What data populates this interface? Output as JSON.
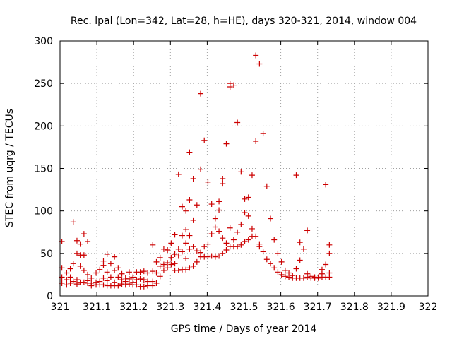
{
  "chart_data": {
    "type": "scatter",
    "title": "Rec. lpal (Lon=342, Lat=28, h=HE), days 320-321, 2014, window 004",
    "xlabel": "GPS time / Days of year 2014",
    "ylabel": "STEC from uqrg / TECUs",
    "xlim": [
      321,
      322
    ],
    "ylim": [
      0,
      300
    ],
    "x_ticks": [
      "321",
      "321.1",
      "321.2",
      "321.3",
      "321.4",
      "321.5",
      "321.6",
      "321.7",
      "321.8",
      "321.9",
      "322"
    ],
    "y_ticks": [
      "0",
      "50",
      "100",
      "150",
      "200",
      "250",
      "300"
    ],
    "grid": true,
    "marker": "plus",
    "color": "#cc0000",
    "points": [
      [
        321.005,
        64
      ],
      [
        321.005,
        33
      ],
      [
        321.005,
        22
      ],
      [
        321.005,
        15
      ],
      [
        321.018,
        27
      ],
      [
        321.018,
        19
      ],
      [
        321.018,
        13
      ],
      [
        321.028,
        32
      ],
      [
        321.028,
        22
      ],
      [
        321.028,
        15
      ],
      [
        321.036,
        87
      ],
      [
        321.036,
        38
      ],
      [
        321.036,
        17
      ],
      [
        321.046,
        65
      ],
      [
        321.046,
        50
      ],
      [
        321.046,
        19
      ],
      [
        321.046,
        14
      ],
      [
        321.055,
        61
      ],
      [
        321.055,
        48
      ],
      [
        321.055,
        35
      ],
      [
        321.055,
        16
      ],
      [
        321.065,
        73
      ],
      [
        321.065,
        48
      ],
      [
        321.065,
        30
      ],
      [
        321.065,
        16
      ],
      [
        321.075,
        64
      ],
      [
        321.075,
        25
      ],
      [
        321.075,
        18
      ],
      [
        321.075,
        15
      ],
      [
        321.085,
        21
      ],
      [
        321.085,
        15
      ],
      [
        321.085,
        12
      ],
      [
        321.098,
        27
      ],
      [
        321.098,
        16
      ],
      [
        321.098,
        13
      ],
      [
        321.108,
        31
      ],
      [
        321.108,
        17
      ],
      [
        321.108,
        13
      ],
      [
        321.118,
        41
      ],
      [
        321.118,
        36
      ],
      [
        321.118,
        21
      ],
      [
        321.118,
        13
      ],
      [
        321.128,
        49
      ],
      [
        321.128,
        28
      ],
      [
        321.128,
        18
      ],
      [
        321.128,
        12
      ],
      [
        321.138,
        38
      ],
      [
        321.138,
        22
      ],
      [
        321.138,
        12
      ],
      [
        321.148,
        46
      ],
      [
        321.148,
        30
      ],
      [
        321.148,
        16
      ],
      [
        321.148,
        12
      ],
      [
        321.158,
        33
      ],
      [
        321.158,
        22
      ],
      [
        321.158,
        12
      ],
      [
        321.168,
        26
      ],
      [
        321.168,
        19
      ],
      [
        321.168,
        14
      ],
      [
        321.178,
        21
      ],
      [
        321.178,
        17
      ],
      [
        321.178,
        13
      ],
      [
        321.188,
        28
      ],
      [
        321.188,
        20
      ],
      [
        321.188,
        14
      ],
      [
        321.198,
        22
      ],
      [
        321.198,
        16
      ],
      [
        321.198,
        13
      ],
      [
        321.208,
        28
      ],
      [
        321.208,
        19
      ],
      [
        321.208,
        13
      ],
      [
        321.218,
        28
      ],
      [
        321.218,
        20
      ],
      [
        321.218,
        11
      ],
      [
        321.228,
        29
      ],
      [
        321.228,
        19
      ],
      [
        321.228,
        11
      ],
      [
        321.238,
        27
      ],
      [
        321.238,
        17
      ],
      [
        321.238,
        12
      ],
      [
        321.252,
        60
      ],
      [
        321.252,
        29
      ],
      [
        321.252,
        17
      ],
      [
        321.252,
        12
      ],
      [
        321.262,
        40
      ],
      [
        321.262,
        27
      ],
      [
        321.262,
        15
      ],
      [
        321.272,
        45
      ],
      [
        321.272,
        35
      ],
      [
        321.272,
        23
      ],
      [
        321.282,
        55
      ],
      [
        321.282,
        37
      ],
      [
        321.282,
        30
      ],
      [
        321.292,
        54
      ],
      [
        321.292,
        39
      ],
      [
        321.292,
        33
      ],
      [
        321.302,
        62
      ],
      [
        321.302,
        45
      ],
      [
        321.302,
        37
      ],
      [
        321.312,
        72
      ],
      [
        321.312,
        49
      ],
      [
        321.312,
        38
      ],
      [
        321.312,
        30
      ],
      [
        321.322,
        143
      ],
      [
        321.322,
        55
      ],
      [
        321.322,
        47
      ],
      [
        321.322,
        30
      ],
      [
        321.332,
        105
      ],
      [
        321.332,
        71
      ],
      [
        321.332,
        52
      ],
      [
        321.332,
        31
      ],
      [
        321.342,
        100
      ],
      [
        321.342,
        78
      ],
      [
        321.342,
        62
      ],
      [
        321.342,
        44
      ],
      [
        321.342,
        31
      ],
      [
        321.352,
        169
      ],
      [
        321.352,
        113
      ],
      [
        321.352,
        71
      ],
      [
        321.352,
        55
      ],
      [
        321.352,
        33
      ],
      [
        321.362,
        138
      ],
      [
        321.362,
        89
      ],
      [
        321.362,
        58
      ],
      [
        321.362,
        35
      ],
      [
        321.372,
        107
      ],
      [
        321.372,
        53
      ],
      [
        321.372,
        40
      ],
      [
        321.382,
        238
      ],
      [
        321.382,
        149
      ],
      [
        321.382,
        51
      ],
      [
        321.382,
        46
      ],
      [
        321.392,
        183
      ],
      [
        321.392,
        58
      ],
      [
        321.392,
        46
      ],
      [
        321.402,
        134
      ],
      [
        321.402,
        61
      ],
      [
        321.402,
        46
      ],
      [
        321.412,
        108
      ],
      [
        321.412,
        73
      ],
      [
        321.412,
        47
      ],
      [
        321.422,
        91
      ],
      [
        321.422,
        81
      ],
      [
        321.422,
        46
      ],
      [
        321.432,
        111
      ],
      [
        321.432,
        101
      ],
      [
        321.432,
        76
      ],
      [
        321.432,
        47
      ],
      [
        321.442,
        138
      ],
      [
        321.442,
        132
      ],
      [
        321.442,
        68
      ],
      [
        321.442,
        50
      ],
      [
        321.452,
        179
      ],
      [
        321.452,
        62
      ],
      [
        321.452,
        54
      ],
      [
        321.462,
        250
      ],
      [
        321.462,
        246
      ],
      [
        321.462,
        80
      ],
      [
        321.462,
        58
      ],
      [
        321.472,
        248
      ],
      [
        321.472,
        66
      ],
      [
        321.472,
        58
      ],
      [
        321.482,
        204
      ],
      [
        321.482,
        75
      ],
      [
        321.482,
        58
      ],
      [
        321.492,
        146
      ],
      [
        321.492,
        84
      ],
      [
        321.492,
        60
      ],
      [
        321.502,
        114
      ],
      [
        321.502,
        98
      ],
      [
        321.502,
        64
      ],
      [
        321.512,
        116
      ],
      [
        321.512,
        94
      ],
      [
        321.512,
        66
      ],
      [
        321.522,
        142
      ],
      [
        321.522,
        79
      ],
      [
        321.522,
        70
      ],
      [
        321.532,
        283
      ],
      [
        321.532,
        182
      ],
      [
        321.532,
        70
      ],
      [
        321.542,
        273
      ],
      [
        321.542,
        61
      ],
      [
        321.542,
        58
      ],
      [
        321.552,
        191
      ],
      [
        321.552,
        52
      ],
      [
        321.562,
        129
      ],
      [
        321.562,
        43
      ],
      [
        321.572,
        91
      ],
      [
        321.572,
        38
      ],
      [
        321.582,
        66
      ],
      [
        321.582,
        33
      ],
      [
        321.592,
        50
      ],
      [
        321.592,
        28
      ],
      [
        321.602,
        40
      ],
      [
        321.602,
        25
      ],
      [
        321.612,
        30
      ],
      [
        321.612,
        23
      ],
      [
        321.622,
        27
      ],
      [
        321.622,
        22
      ],
      [
        321.632,
        24
      ],
      [
        321.632,
        21
      ],
      [
        321.642,
        142
      ],
      [
        321.642,
        32
      ],
      [
        321.642,
        21
      ],
      [
        321.652,
        63
      ],
      [
        321.652,
        42
      ],
      [
        321.652,
        21
      ],
      [
        321.662,
        55
      ],
      [
        321.662,
        21
      ],
      [
        321.672,
        77
      ],
      [
        321.672,
        26
      ],
      [
        321.672,
        22
      ],
      [
        321.682,
        23
      ],
      [
        321.682,
        21
      ],
      [
        321.692,
        22
      ],
      [
        321.692,
        21
      ],
      [
        321.702,
        22
      ],
      [
        321.702,
        21
      ],
      [
        321.712,
        31
      ],
      [
        321.712,
        26
      ],
      [
        321.712,
        22
      ],
      [
        321.722,
        131
      ],
      [
        321.722,
        37
      ],
      [
        321.722,
        22
      ],
      [
        321.732,
        60
      ],
      [
        321.732,
        50
      ],
      [
        321.732,
        27
      ],
      [
        321.732,
        22
      ]
    ]
  }
}
